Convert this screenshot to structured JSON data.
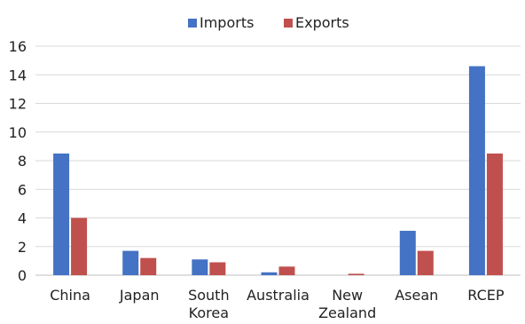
{
  "chart_data": {
    "type": "bar",
    "categories": [
      [
        "China"
      ],
      [
        "Japan"
      ],
      [
        "South",
        "Korea"
      ],
      [
        "Australia"
      ],
      [
        "New",
        "Zealand"
      ],
      [
        "Asean"
      ],
      [
        "RCEP"
      ]
    ],
    "series": [
      {
        "name": "Imports",
        "color": "#4472c4",
        "values": [
          8.5,
          1.7,
          1.1,
          0.2,
          0.0,
          3.1,
          14.6
        ]
      },
      {
        "name": "Exports",
        "color": "#c0504d",
        "values": [
          4.0,
          1.2,
          0.9,
          0.6,
          0.1,
          1.7,
          8.5
        ]
      }
    ],
    "ylim": [
      0,
      16
    ],
    "yticks": [
      0,
      2,
      4,
      6,
      8,
      10,
      12,
      14,
      16
    ],
    "grid": true,
    "legend_position": "top-center"
  }
}
